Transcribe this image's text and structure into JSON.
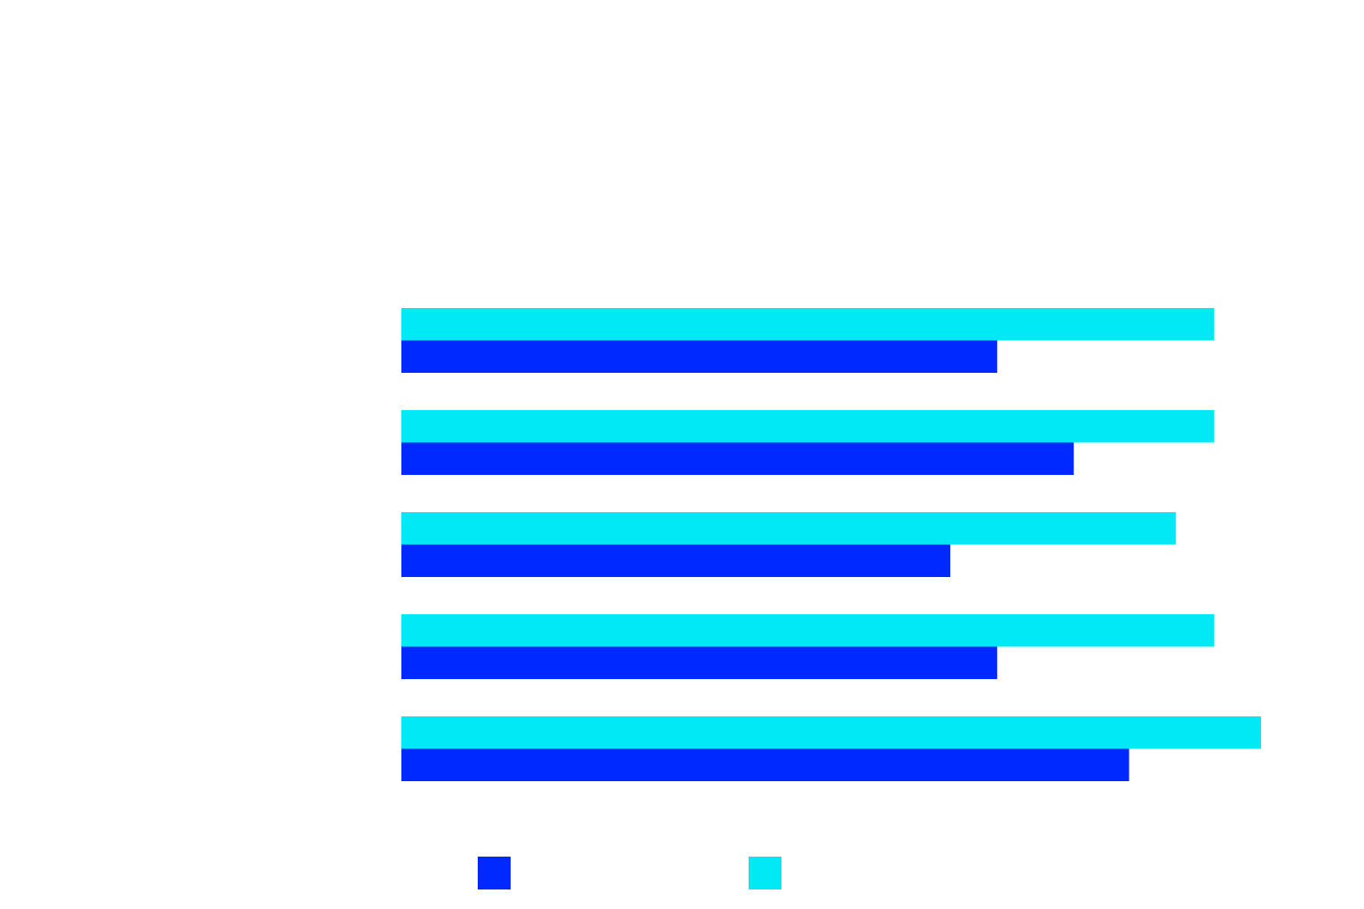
{
  "chart_data": {
    "type": "bar",
    "orientation": "horizontal",
    "title": "",
    "xlabel": "",
    "ylabel": "",
    "categories": [
      "",
      "",
      "",
      "",
      ""
    ],
    "series": [
      {
        "color": "#0029ff",
        "values": [
          70,
          79,
          64.5,
          70,
          85.5
        ]
      },
      {
        "color": "#00e9f5",
        "values": [
          95.5,
          95.5,
          91,
          95.5,
          101
        ]
      }
    ],
    "xlim": [
      0,
      101
    ],
    "grid": false,
    "legend": {
      "position": "bottom"
    }
  }
}
